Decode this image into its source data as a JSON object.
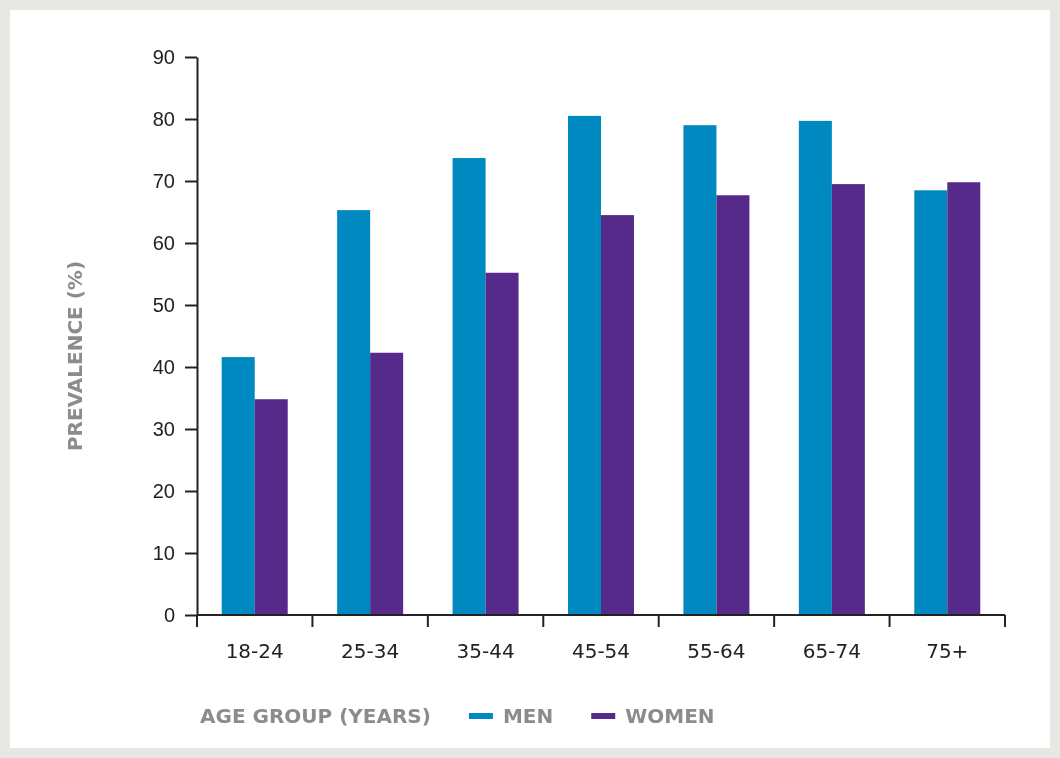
{
  "chart_data": {
    "type": "bar",
    "xlabel": "AGE GROUP (YEARS)",
    "ylabel": "PREVALENCE (%)",
    "categories": [
      "18-24",
      "25-34",
      "35-44",
      "45-54",
      "55-64",
      "65-74",
      "75+"
    ],
    "series": [
      {
        "name": "MEN",
        "color": "#0088c0",
        "values": [
          41.6,
          65.3,
          73.7,
          80.5,
          79,
          79.7,
          68.5
        ]
      },
      {
        "name": "WOMEN",
        "color": "#552a8b",
        "values": [
          34.8,
          42.3,
          55.2,
          64.5,
          67.7,
          69.5,
          69.8
        ]
      }
    ],
    "ylim": [
      0,
      90
    ],
    "yticks": [
      0,
      10,
      20,
      30,
      40,
      50,
      60,
      70,
      80,
      90
    ],
    "grid": false,
    "legend": "bottom"
  }
}
